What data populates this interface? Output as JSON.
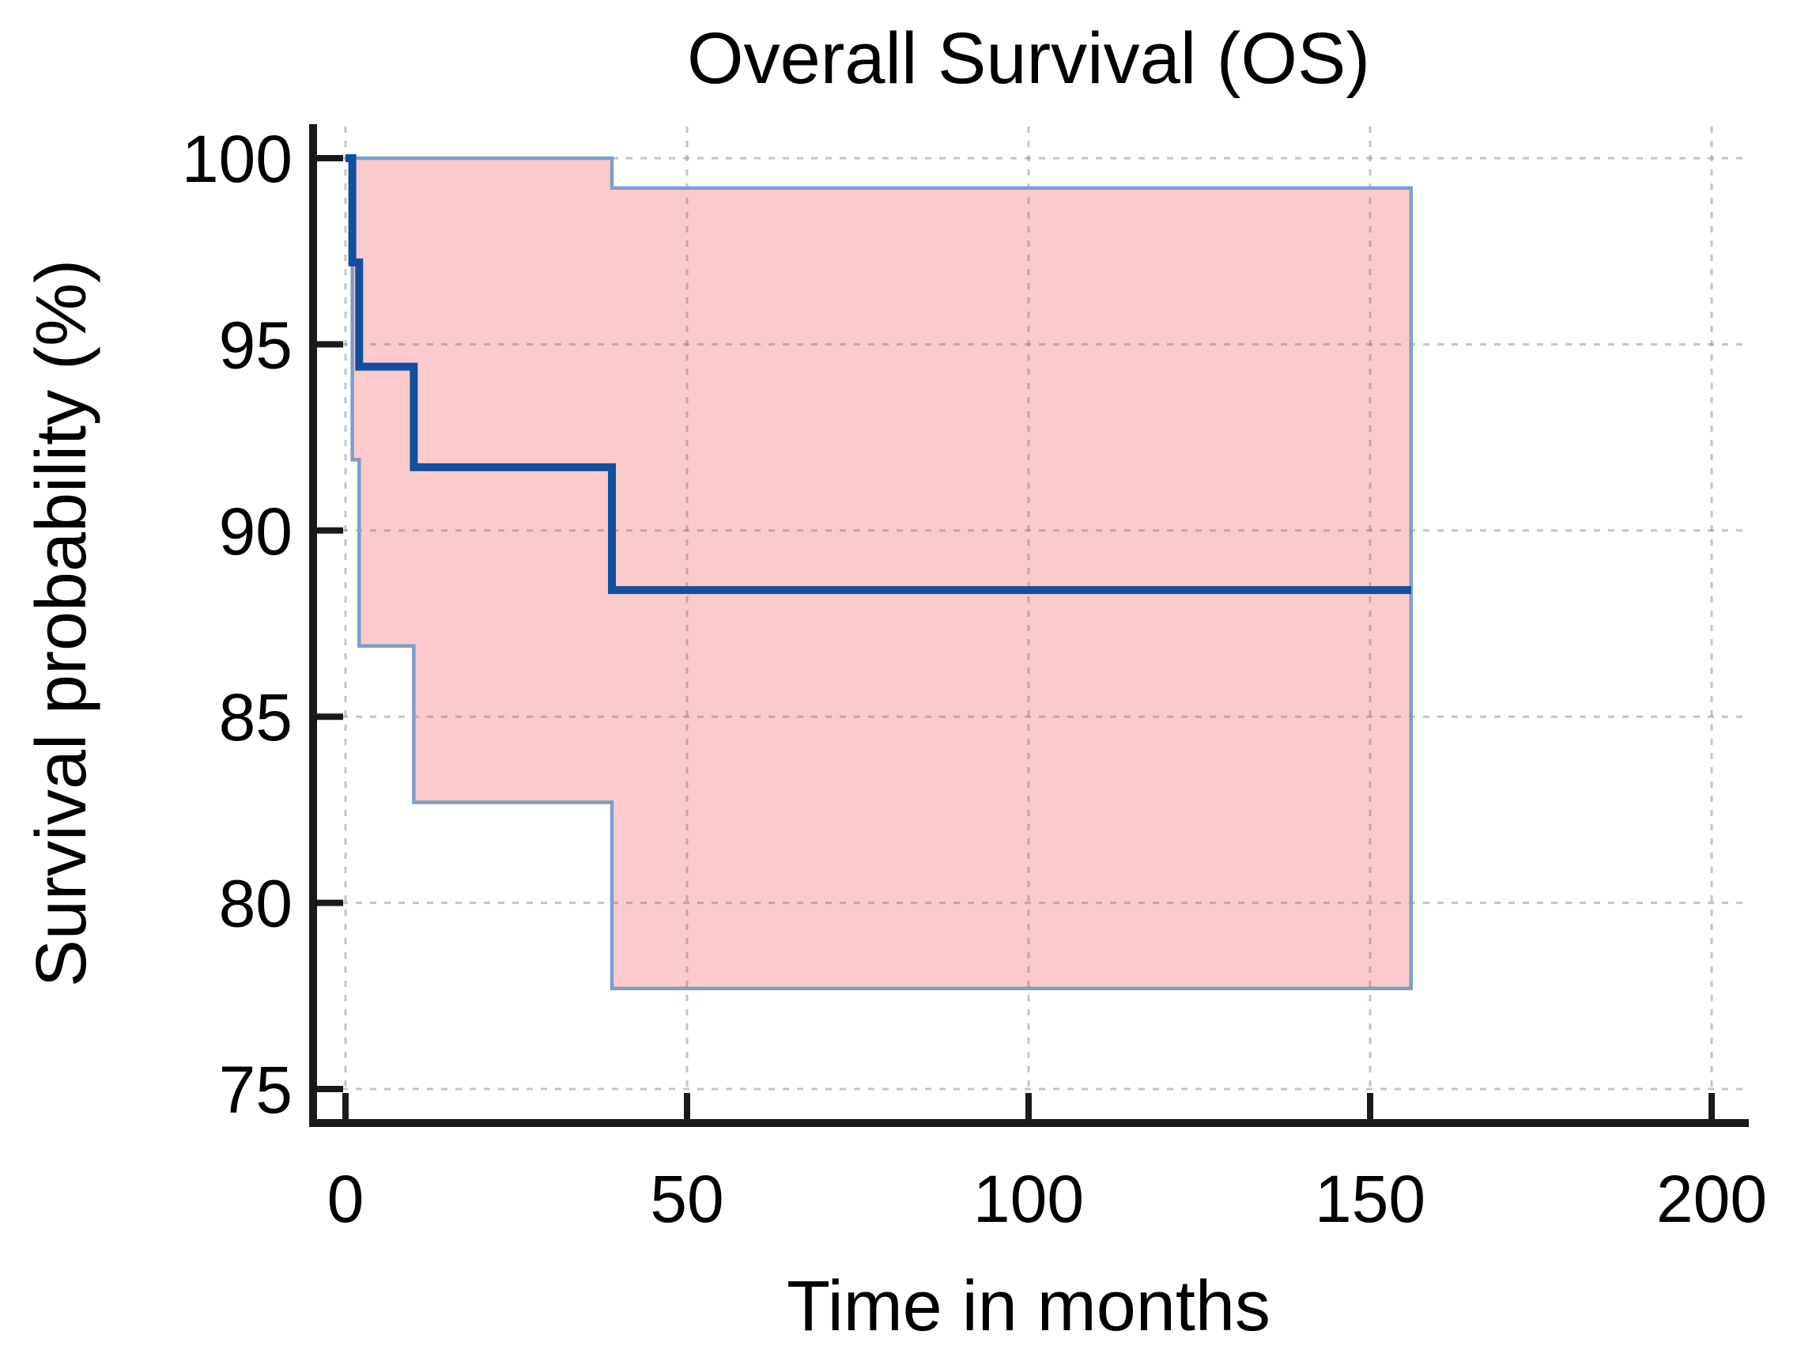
{
  "figure": {
    "background": "#ffffff"
  },
  "chart_data": {
    "type": "line",
    "subtype": "kaplan-meier-step",
    "title": "Overall Survival (OS)",
    "xlabel": "Time in months",
    "ylabel": "Survival probability (%)",
    "xlim": [
      0,
      200
    ],
    "ylim": [
      75,
      100
    ],
    "xticks": [
      0,
      50,
      100,
      150,
      200
    ],
    "yticks": [
      75,
      80,
      85,
      90,
      95,
      100
    ],
    "grid": "dashed gray, both axes, at major ticks",
    "legend": "none",
    "series": [
      {
        "name": "OS Kaplan-Meier estimate",
        "role": "estimate",
        "step_x": [
          0,
          1,
          2,
          10,
          39
        ],
        "step_y": [
          100,
          97.2,
          94.4,
          91.7,
          88.4
        ],
        "x_end": 156,
        "color": "#124f9e",
        "line_width": 10
      },
      {
        "name": "95% CI upper bound",
        "role": "ci-upper",
        "step_x": [
          1,
          39
        ],
        "step_y": [
          100,
          99.2
        ],
        "x_end": 156,
        "color": "#7e9dca",
        "line_width": 4.5
      },
      {
        "name": "95% CI lower bound",
        "role": "ci-lower",
        "step_x": [
          1,
          2,
          10,
          39
        ],
        "step_y": [
          91.9,
          86.9,
          82.7,
          77.7
        ],
        "x_end": 156,
        "color": "#7e9dca",
        "line_width": 4.5
      }
    ],
    "band_fill": "#fbcaca",
    "axis_color": "#1a1a1a",
    "grid_color": "#777777"
  }
}
